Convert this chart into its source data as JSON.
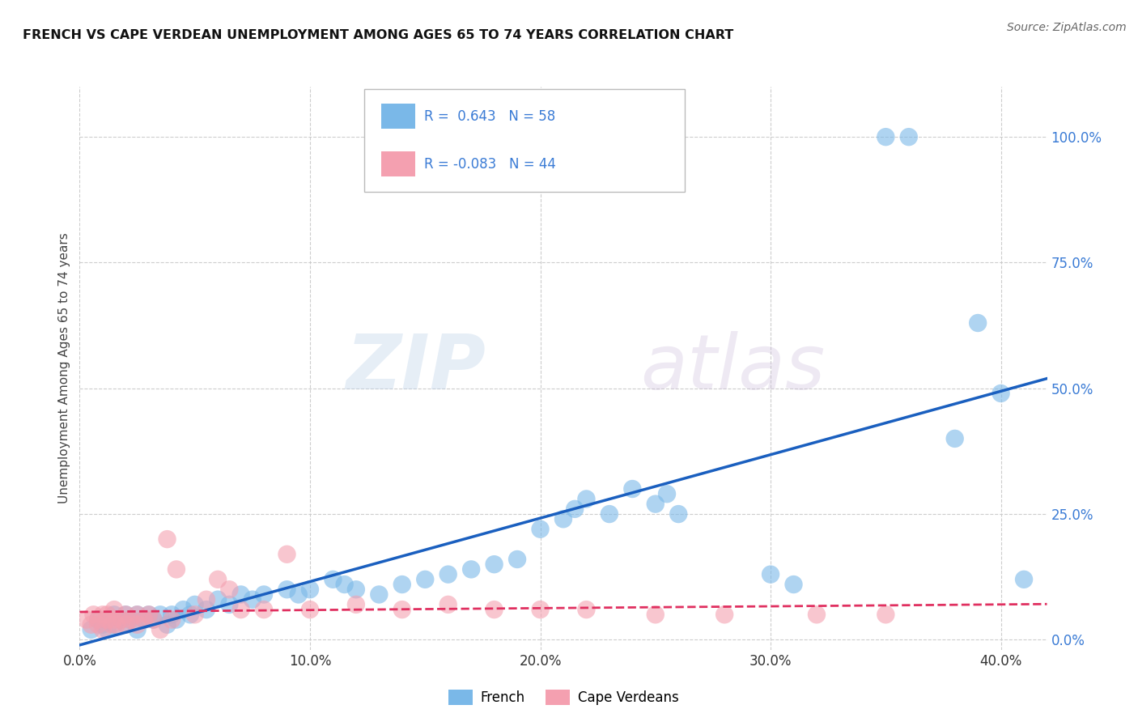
{
  "title": "FRENCH VS CAPE VERDEAN UNEMPLOYMENT AMONG AGES 65 TO 74 YEARS CORRELATION CHART",
  "source": "Source: ZipAtlas.com",
  "ylabel_label": "Unemployment Among Ages 65 to 74 years",
  "xlim": [
    0.0,
    0.42
  ],
  "ylim": [
    -0.02,
    1.1
  ],
  "xticks": [
    0.0,
    0.1,
    0.2,
    0.3,
    0.4
  ],
  "xticklabels": [
    "0.0%",
    "10.0%",
    "20.0%",
    "30.0%",
    "40.0%"
  ],
  "ytick_positions": [
    0.0,
    0.25,
    0.5,
    0.75,
    1.0
  ],
  "yticklabels": [
    "0.0%",
    "25.0%",
    "50.0%",
    "75.0%",
    "100.0%"
  ],
  "french_color": "#7ab8e8",
  "cape_verdean_color": "#f4a0b0",
  "french_R": 0.643,
  "french_N": 58,
  "cape_verdean_R": -0.083,
  "cape_verdean_N": 44,
  "french_line_color": "#1a5fbf",
  "cape_verdean_line_color": "#e03060",
  "watermark_zip": "ZIP",
  "watermark_atlas": "atlas",
  "background_color": "#ffffff",
  "grid_color": "#c8c8c8",
  "french_scatter_x": [
    0.005,
    0.008,
    0.01,
    0.012,
    0.015,
    0.015,
    0.018,
    0.02,
    0.02,
    0.022,
    0.025,
    0.025,
    0.028,
    0.03,
    0.032,
    0.035,
    0.038,
    0.04,
    0.042,
    0.045,
    0.048,
    0.05,
    0.055,
    0.06,
    0.065,
    0.07,
    0.075,
    0.08,
    0.09,
    0.095,
    0.1,
    0.11,
    0.115,
    0.12,
    0.13,
    0.14,
    0.15,
    0.16,
    0.17,
    0.18,
    0.19,
    0.2,
    0.21,
    0.215,
    0.22,
    0.23,
    0.24,
    0.25,
    0.255,
    0.26,
    0.3,
    0.31,
    0.35,
    0.36,
    0.38,
    0.39,
    0.4,
    0.41
  ],
  "french_scatter_y": [
    0.02,
    0.04,
    0.03,
    0.02,
    0.05,
    0.03,
    0.04,
    0.03,
    0.05,
    0.04,
    0.02,
    0.05,
    0.04,
    0.05,
    0.04,
    0.05,
    0.03,
    0.05,
    0.04,
    0.06,
    0.05,
    0.07,
    0.06,
    0.08,
    0.07,
    0.09,
    0.08,
    0.09,
    0.1,
    0.09,
    0.1,
    0.12,
    0.11,
    0.1,
    0.09,
    0.11,
    0.12,
    0.13,
    0.14,
    0.15,
    0.16,
    0.22,
    0.24,
    0.26,
    0.28,
    0.25,
    0.3,
    0.27,
    0.29,
    0.25,
    0.13,
    0.11,
    1.0,
    1.0,
    0.4,
    0.63,
    0.49,
    0.12
  ],
  "cape_verdean_scatter_x": [
    0.003,
    0.005,
    0.006,
    0.008,
    0.008,
    0.01,
    0.01,
    0.012,
    0.012,
    0.014,
    0.015,
    0.015,
    0.016,
    0.018,
    0.02,
    0.02,
    0.022,
    0.025,
    0.025,
    0.028,
    0.03,
    0.032,
    0.035,
    0.038,
    0.04,
    0.042,
    0.05,
    0.055,
    0.06,
    0.065,
    0.07,
    0.08,
    0.09,
    0.1,
    0.12,
    0.14,
    0.16,
    0.18,
    0.2,
    0.22,
    0.25,
    0.28,
    0.32,
    0.35
  ],
  "cape_verdean_scatter_y": [
    0.04,
    0.03,
    0.05,
    0.03,
    0.04,
    0.05,
    0.02,
    0.04,
    0.05,
    0.03,
    0.04,
    0.06,
    0.03,
    0.04,
    0.05,
    0.03,
    0.04,
    0.03,
    0.05,
    0.04,
    0.05,
    0.04,
    0.02,
    0.2,
    0.04,
    0.14,
    0.05,
    0.08,
    0.12,
    0.1,
    0.06,
    0.06,
    0.17,
    0.06,
    0.07,
    0.06,
    0.07,
    0.06,
    0.06,
    0.06,
    0.05,
    0.05,
    0.05,
    0.05
  ]
}
